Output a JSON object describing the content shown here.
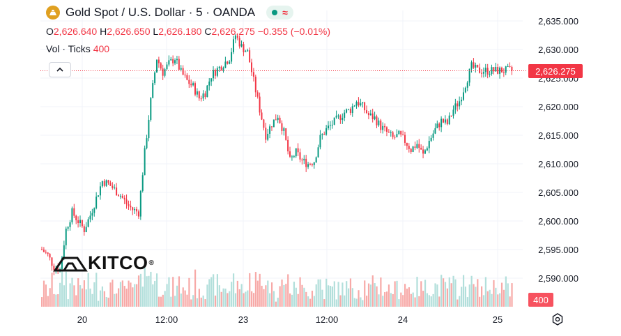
{
  "header": {
    "symbol_name": "Gold Spot",
    "pair": "U.S. Dollar",
    "interval": "5",
    "source": "OANDA",
    "sep1": " / ",
    "sep2": " · ",
    "sep3": " · "
  },
  "ohlc": {
    "o_key": "O",
    "o_val": "2,626.640",
    "h_key": "H",
    "h_val": "2,626.650",
    "l_key": "L",
    "l_val": "2,626.180",
    "c_key": "C",
    "c_val": "2,626.275",
    "change": "−0.355 (−0.01%)"
  },
  "volume": {
    "label": "Vol · Ticks",
    "value": "400"
  },
  "watermark": {
    "brand": "KITCO",
    "mark": "®"
  },
  "price_axis": {
    "ticks": [
      "2,635.000",
      "2,630.000",
      "2,625.000",
      "2,620.000",
      "2,615.000",
      "2,610.000",
      "2,605.000",
      "2,600.000",
      "2,595.000",
      "2,590.000"
    ],
    "current_price_label": "2,626.275",
    "current_volume_label": "400"
  },
  "time_axis": {
    "ticks": [
      "20",
      "12:00",
      "23",
      "12:00",
      "24",
      "25"
    ]
  },
  "colors": {
    "up": "#089981",
    "down": "#f23645",
    "grid": "#f0f3fa",
    "up_vol": "#b2dfdb",
    "down_vol": "#f7a9a7"
  },
  "icons": [
    "gold-coin-icon",
    "market-open-dot-icon",
    "realtime-wave-icon",
    "chevron-up-icon",
    "settings-icon"
  ],
  "chart_data": {
    "type": "candlestick",
    "title": "Gold Spot / U.S. Dollar · 5 · OANDA",
    "xlabel": "",
    "ylabel": "",
    "ylim": [
      2587,
      2637
    ],
    "x_ticks": [
      "20",
      "12:00",
      "23",
      "12:00",
      "24",
      "25"
    ],
    "last_close": 2626.275,
    "series": [
      {
        "name": "Price (approx. close path)",
        "x_index": [
          0,
          3,
          6,
          9,
          12,
          15,
          18,
          21,
          24,
          27,
          30,
          33,
          36,
          39,
          42,
          45,
          48,
          51,
          54,
          57,
          60,
          63,
          66,
          69,
          72,
          75,
          78,
          81,
          84,
          87,
          90,
          93,
          96,
          99,
          102,
          105,
          108,
          111,
          114,
          117,
          120,
          123,
          126,
          129,
          132,
          135,
          138,
          141,
          144,
          147,
          150,
          153,
          156,
          159,
          162,
          165,
          168,
          171,
          174,
          177,
          180,
          183,
          186,
          189,
          192,
          195,
          198,
          201,
          204,
          207,
          210,
          213,
          216,
          219,
          222,
          225,
          228,
          231,
          234,
          237
        ],
        "values": [
          2595.0,
          2594.0,
          2592.0,
          2591.5,
          2598.5,
          2601.5,
          2600.0,
          2598.5,
          2601.0,
          2604.0,
          2607.0,
          2606.5,
          2605.5,
          2604.5,
          2603.0,
          2602.0,
          2601.5,
          2612.0,
          2621.0,
          2628.5,
          2626.0,
          2627.5,
          2628.5,
          2626.0,
          2624.5,
          2623.5,
          2621.5,
          2622.5,
          2625.5,
          2626.5,
          2627.5,
          2628.5,
          2632.5,
          2630.5,
          2629.5,
          2624.5,
          2619.5,
          2615.0,
          2617.0,
          2618.5,
          2615.5,
          2610.5,
          2612.0,
          2610.5,
          2610.0,
          2610.5,
          2614.5,
          2616.0,
          2617.0,
          2618.0,
          2619.0,
          2619.5,
          2621.0,
          2620.0,
          2618.5,
          2618.0,
          2616.5,
          2615.5,
          2614.5,
          2615.0,
          2614.0,
          2612.5,
          2613.5,
          2611.5,
          2614.0,
          2616.0,
          2617.5,
          2617.0,
          2619.5,
          2621.0,
          2624.0,
          2627.0,
          2626.3,
          2626.3,
          2626.3,
          2626.3,
          2626.3,
          2626.3,
          2626.3,
          2626.3
        ]
      }
    ],
    "volume_series": {
      "name": "Vol · Ticks",
      "last": 400
    }
  }
}
